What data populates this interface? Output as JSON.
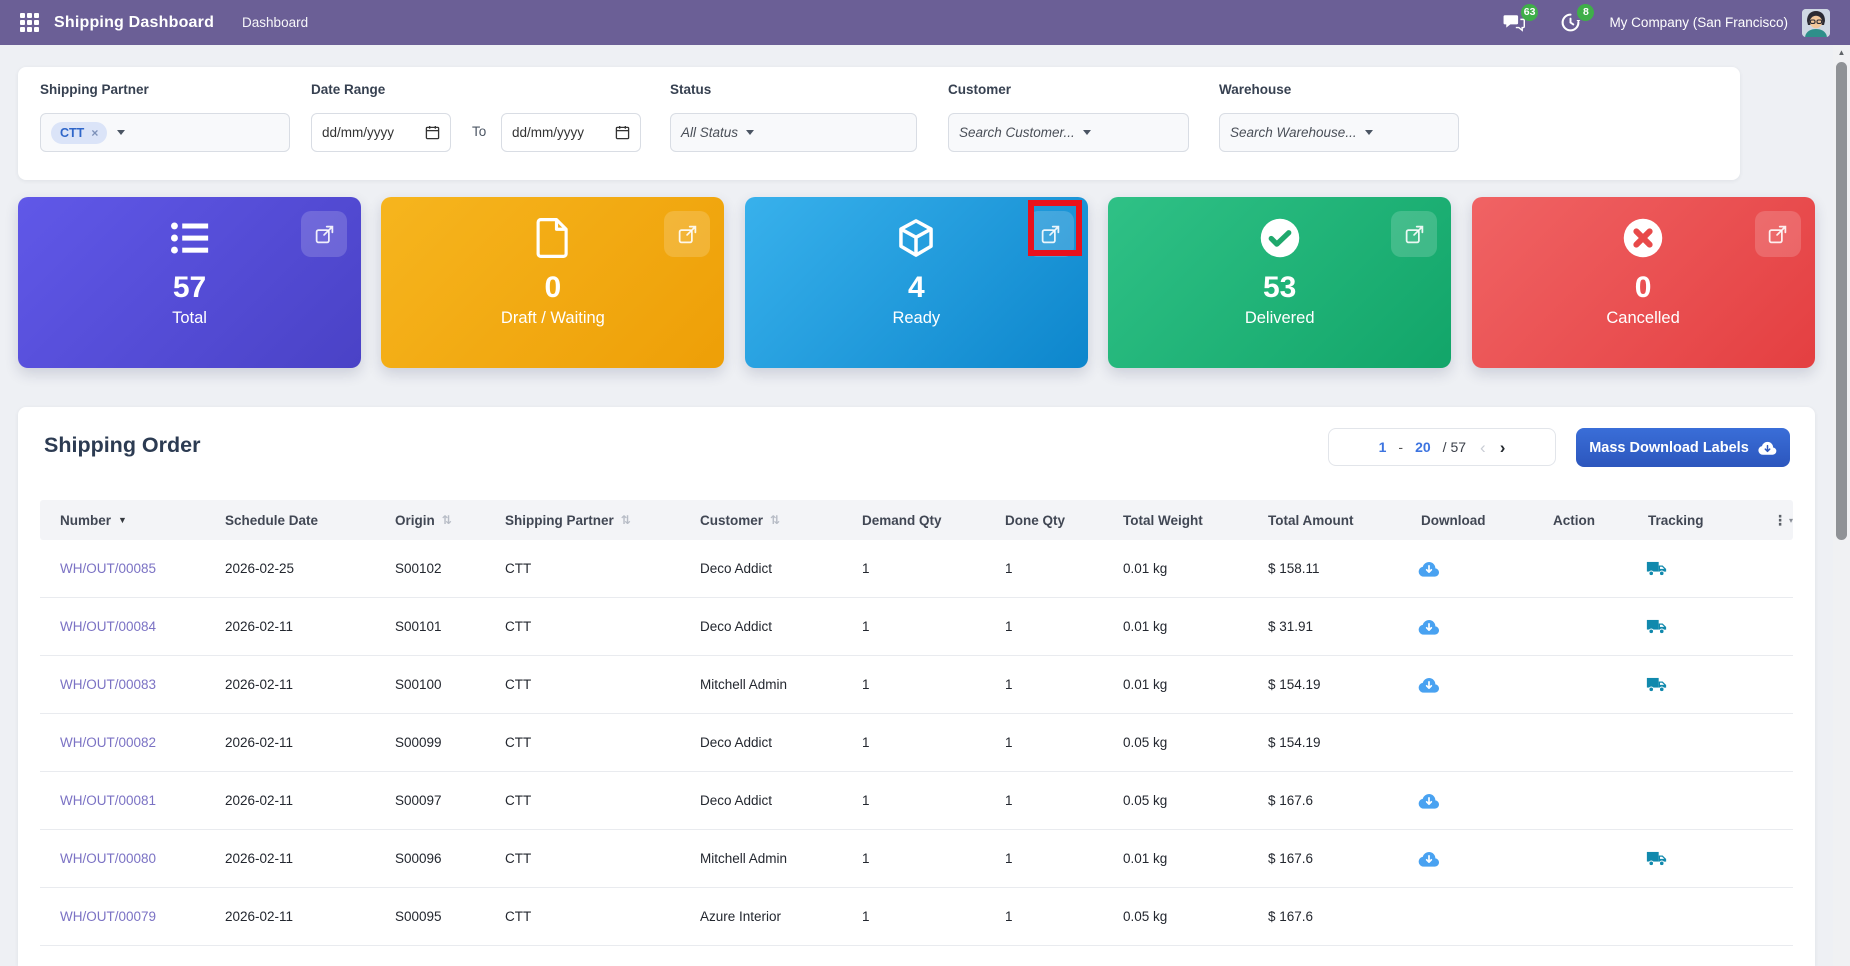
{
  "navbar": {
    "app_title": "Shipping Dashboard",
    "menu_dashboard": "Dashboard",
    "messages_badge": "63",
    "activities_badge": "8",
    "company": "My Company (San Francisco)"
  },
  "filters": {
    "shipping_partner": {
      "label": "Shipping Partner",
      "tag": "CTT",
      "remove_symbol": "×"
    },
    "date_range": {
      "label": "Date Range",
      "from_placeholder": "dd/mm/yyyy",
      "separator": "To",
      "to_placeholder": "dd/mm/yyyy"
    },
    "status": {
      "label": "Status",
      "value": "All Status"
    },
    "customer": {
      "label": "Customer",
      "placeholder": "Search Customer..."
    },
    "warehouse": {
      "label": "Warehouse",
      "placeholder": "Search Warehouse..."
    }
  },
  "stat_cards": [
    {
      "label": "Total",
      "value": "57",
      "icon": "list-icon",
      "color_from": "#6058e8",
      "color_to": "#4a42c6",
      "highlighted": false
    },
    {
      "label": "Draft / Waiting",
      "value": "0",
      "icon": "file-icon",
      "color_from": "#f6b51e",
      "color_to": "#ee9f07",
      "highlighted": false
    },
    {
      "label": "Ready",
      "value": "4",
      "icon": "cube-icon",
      "color_from": "#38b1ec",
      "color_to": "#0d86cc",
      "highlighted": true
    },
    {
      "label": "Delivered",
      "value": "53",
      "icon": "check-circle-icon",
      "color_from": "#2fc186",
      "color_to": "#12a569",
      "highlighted": false
    },
    {
      "label": "Cancelled",
      "value": "0",
      "icon": "x-circle-icon",
      "color_from": "#f06364",
      "color_to": "#e43f41",
      "highlighted": false
    }
  ],
  "annotation": {
    "color": "#e9111b",
    "target": "ready-card-external-link"
  },
  "orders": {
    "title": "Shipping Order",
    "pagination": {
      "start": "1",
      "separator": "-",
      "end": "20",
      "total": "/ 57",
      "prev_symbol": "‹",
      "next_symbol": "›"
    },
    "mass_download_label": "Mass Download Labels",
    "columns": [
      {
        "label": "Number",
        "sort": "desc"
      },
      {
        "label": "Schedule Date",
        "sort": null
      },
      {
        "label": "Origin",
        "sort": "both"
      },
      {
        "label": "Shipping Partner",
        "sort": "both"
      },
      {
        "label": "Customer",
        "sort": "both"
      },
      {
        "label": "Demand Qty",
        "sort": null
      },
      {
        "label": "Done Qty",
        "sort": null
      },
      {
        "label": "Total Weight",
        "sort": null
      },
      {
        "label": "Total Amount",
        "sort": null
      },
      {
        "label": "Download",
        "sort": null
      },
      {
        "label": "Action",
        "sort": null
      },
      {
        "label": "Tracking",
        "sort": null
      }
    ],
    "rows": [
      {
        "number": "WH/OUT/00085",
        "schedule_date": "2026-02-25",
        "origin": "S00102",
        "shipping_partner": "CTT",
        "customer": "Deco Addict",
        "demand_qty": "1",
        "done_qty": "1",
        "total_weight": "0.01 kg",
        "total_amount": "$ 158.11",
        "download": true,
        "tracking": true
      },
      {
        "number": "WH/OUT/00084",
        "schedule_date": "2026-02-11",
        "origin": "S00101",
        "shipping_partner": "CTT",
        "customer": "Deco Addict",
        "demand_qty": "1",
        "done_qty": "1",
        "total_weight": "0.01 kg",
        "total_amount": "$ 31.91",
        "download": true,
        "tracking": true
      },
      {
        "number": "WH/OUT/00083",
        "schedule_date": "2026-02-11",
        "origin": "S00100",
        "shipping_partner": "CTT",
        "customer": "Mitchell Admin",
        "demand_qty": "1",
        "done_qty": "1",
        "total_weight": "0.01 kg",
        "total_amount": "$ 154.19",
        "download": true,
        "tracking": true
      },
      {
        "number": "WH/OUT/00082",
        "schedule_date": "2026-02-11",
        "origin": "S00099",
        "shipping_partner": "CTT",
        "customer": "Deco Addict",
        "demand_qty": "1",
        "done_qty": "1",
        "total_weight": "0.05 kg",
        "total_amount": "$ 154.19",
        "download": false,
        "tracking": false
      },
      {
        "number": "WH/OUT/00081",
        "schedule_date": "2026-02-11",
        "origin": "S00097",
        "shipping_partner": "CTT",
        "customer": "Deco Addict",
        "demand_qty": "1",
        "done_qty": "1",
        "total_weight": "0.05 kg",
        "total_amount": "$ 167.6",
        "download": true,
        "tracking": false
      },
      {
        "number": "WH/OUT/00080",
        "schedule_date": "2026-02-11",
        "origin": "S00096",
        "shipping_partner": "CTT",
        "customer": "Mitchell Admin",
        "demand_qty": "1",
        "done_qty": "1",
        "total_weight": "0.01 kg",
        "total_amount": "$ 167.6",
        "download": true,
        "tracking": true
      },
      {
        "number": "WH/OUT/00079",
        "schedule_date": "2026-02-11",
        "origin": "S00095",
        "shipping_partner": "CTT",
        "customer": "Azure Interior",
        "demand_qty": "1",
        "done_qty": "1",
        "total_weight": "0.05 kg",
        "total_amount": "$ 167.6",
        "download": false,
        "tracking": false
      }
    ]
  },
  "ui_colors": {
    "navbar_bg": "#6b5f96",
    "badge_green": "#3fae49",
    "link_purple": "#7b72c4",
    "download_blue": "#49a2f1",
    "tracking_teal": "#1189ad",
    "primary_button_blue": "#3566cb"
  }
}
